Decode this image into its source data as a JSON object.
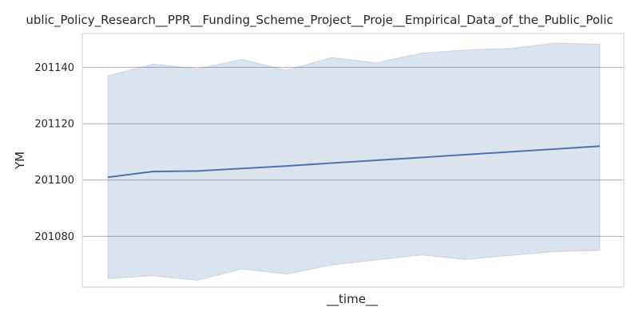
{
  "chart_data": {
    "type": "line",
    "title": "ublic_Policy_Research__PPR__Funding_Scheme_Project__Proje__Empirical_Data_of_the_Public_Polic",
    "xlabel": "__time__",
    "ylabel": "YM",
    "ylim": [
      201062,
      201152
    ],
    "yticks": [
      201080,
      201100,
      201120,
      201140
    ],
    "ytick_labels": [
      "201080",
      "201100",
      "201120",
      "201140"
    ],
    "x": [
      0,
      1,
      2,
      3,
      4,
      5,
      6,
      7,
      8,
      9,
      10,
      11
    ],
    "grid": "horizontal",
    "series": [
      {
        "values": [
          201101,
          201103,
          201103.2,
          201104.1,
          201105,
          201106,
          201107,
          201108,
          201109,
          201110,
          201111,
          201112
        ],
        "lower": [
          201065,
          201066,
          201064.4,
          201068.4,
          201066.6,
          201069.8,
          201071.6,
          201073.4,
          201071.8,
          201073.2,
          201074.6,
          201075
        ],
        "upper": [
          201137,
          201141.2,
          201139.5,
          201142.8,
          201139,
          201143.5,
          201141.6,
          201145,
          201146.2,
          201146.7,
          201148.6,
          201148.2
        ],
        "color": "#4c72b0",
        "band_color": "#4c72b0"
      }
    ],
    "frame_color": "#cccccc",
    "grid_color": "#b0b0b0"
  }
}
